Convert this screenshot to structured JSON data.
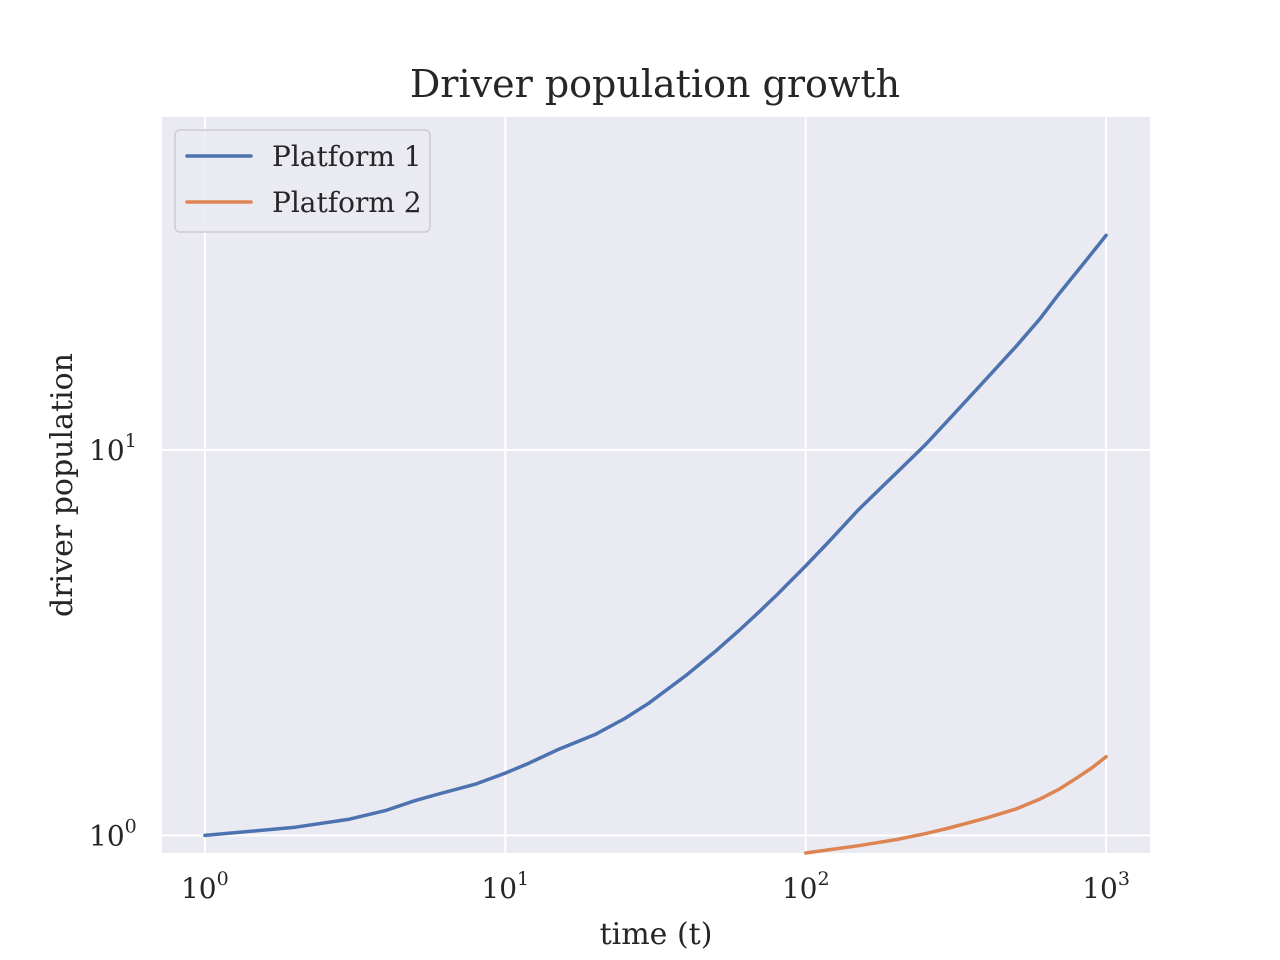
{
  "chart_data": {
    "type": "line",
    "title": "Driver population growth",
    "xlabel": "time (t)",
    "ylabel": "driver population",
    "x_scale": "log",
    "y_scale": "log",
    "xlim": [
      0.72,
      1400
    ],
    "ylim": [
      0.9,
      73
    ],
    "x_ticks": [
      {
        "value": 1,
        "base": "10",
        "exp": "0"
      },
      {
        "value": 10,
        "base": "10",
        "exp": "1"
      },
      {
        "value": 100,
        "base": "10",
        "exp": "2"
      },
      {
        "value": 1000,
        "base": "10",
        "exp": "3"
      }
    ],
    "y_ticks": [
      {
        "value": 1,
        "base": "10",
        "exp": "0"
      },
      {
        "value": 10,
        "base": "10",
        "exp": "1"
      }
    ],
    "grid": true,
    "legend_position": "top-left",
    "series": [
      {
        "name": "Platform 1",
        "color": "#4c72b0",
        "x": [
          1,
          2,
          3,
          4,
          5,
          6,
          8,
          10,
          12,
          15,
          20,
          25,
          30,
          40,
          50,
          60,
          70,
          80,
          100,
          120,
          150,
          200,
          250,
          300,
          400,
          500,
          600,
          700,
          800,
          900,
          1000
        ],
        "y": [
          1.0,
          1.05,
          1.1,
          1.16,
          1.23,
          1.28,
          1.36,
          1.45,
          1.54,
          1.67,
          1.83,
          2.01,
          2.2,
          2.6,
          3.0,
          3.4,
          3.8,
          4.2,
          5.0,
          5.8,
          7.0,
          8.7,
          10.3,
          12.0,
          15.3,
          18.5,
          21.8,
          25.5,
          29.0,
          32.5,
          36.0
        ]
      },
      {
        "name": "Platform 2",
        "color": "#dd8452",
        "x": [
          100,
          150,
          200,
          250,
          300,
          400,
          500,
          600,
          700,
          800,
          900,
          1000
        ],
        "y": [
          0.9,
          0.94,
          0.975,
          1.01,
          1.045,
          1.11,
          1.17,
          1.24,
          1.32,
          1.41,
          1.5,
          1.6
        ]
      }
    ]
  }
}
